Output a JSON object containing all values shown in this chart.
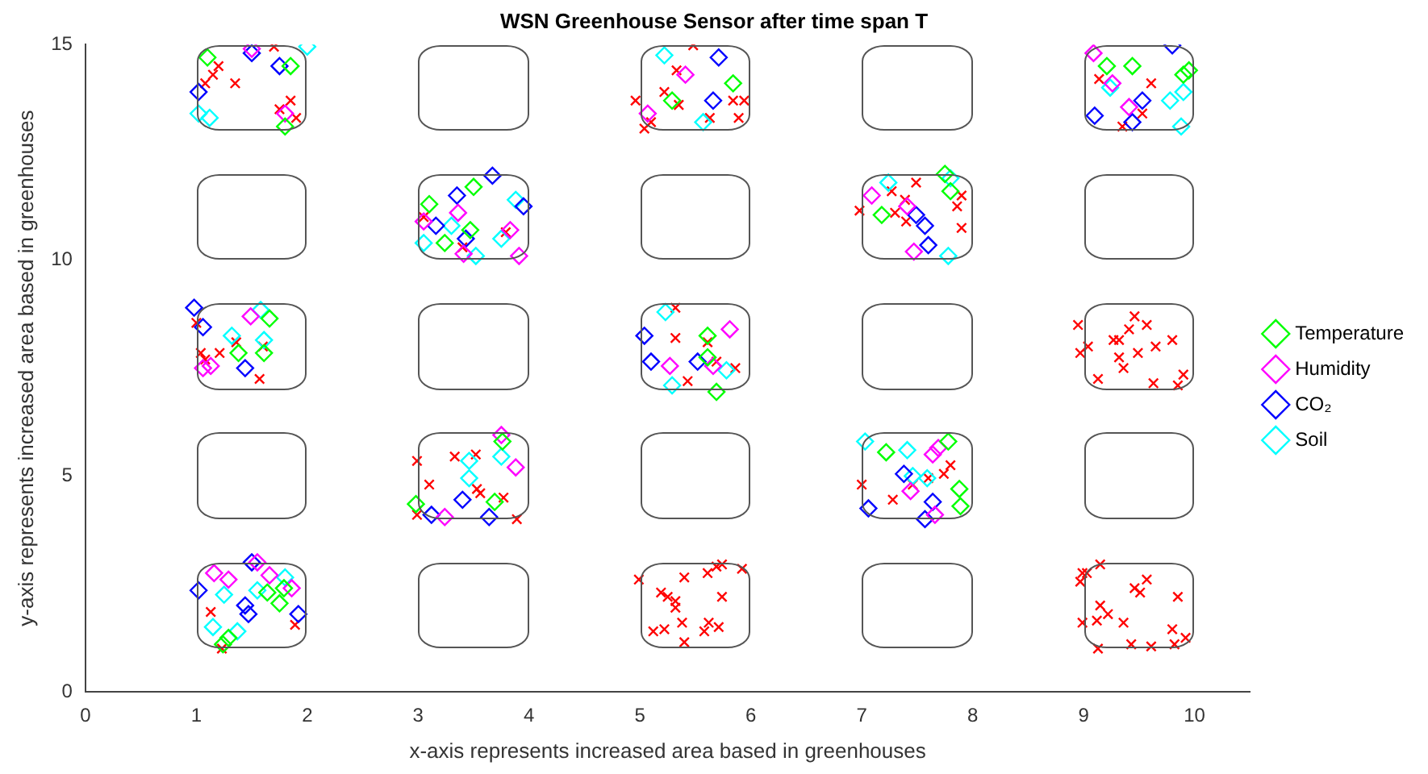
{
  "chart_data": {
    "type": "scatter",
    "title": "WSN Greenhouse Sensor after time span T",
    "xlabel": "x-axis represents increased area based in greenhouses",
    "ylabel": "y-axis represents increased area based in greenhouses",
    "xlim": [
      0,
      10.5
    ],
    "ylim": [
      0,
      15
    ],
    "xticks": [
      0,
      1,
      2,
      3,
      4,
      5,
      6,
      7,
      8,
      9,
      10
    ],
    "yticks": [
      0,
      5,
      10,
      15
    ],
    "grid": false,
    "legend": "right",
    "series": [
      {
        "name": "Temperature",
        "color": "#00ff00",
        "marker": "diamond",
        "x": [
          1.1,
          1.85,
          1.8,
          3.1,
          3.5,
          3.24,
          3.47,
          5.29,
          5.84,
          9.21,
          9.44,
          9.9,
          9.95,
          7.18,
          7.75,
          7.8,
          1.66,
          1.38,
          1.61,
          3.76,
          3.69,
          2.98,
          5.61,
          5.61,
          5.69,
          7.22,
          7.78,
          7.88,
          7.89,
          1.64,
          1.79,
          1.75,
          1.29,
          1.24
        ],
        "values": [
          14.7,
          14.5,
          13.1,
          11.3,
          11.7,
          10.4,
          10.7,
          13.7,
          14.1,
          14.5,
          14.5,
          14.3,
          14.4,
          11.05,
          12.0,
          11.6,
          8.65,
          7.85,
          7.85,
          5.8,
          4.4,
          4.35,
          8.25,
          7.75,
          6.95,
          5.55,
          5.8,
          4.7,
          4.3,
          2.3,
          2.4,
          2.05,
          1.25,
          1.1
        ]
      },
      {
        "name": "Humidity",
        "color": "#ff00ff",
        "marker": "diamond",
        "x": [
          1.5,
          1.8,
          3.36,
          3.05,
          3.83,
          3.91,
          3.41,
          5.41,
          5.07,
          9.09,
          9.26,
          9.41,
          7.09,
          7.41,
          7.47,
          1.49,
          1.06,
          1.13,
          3.75,
          3.88,
          3.24,
          5.81,
          5.27,
          5.66,
          7.64,
          7.69,
          7.44,
          7.66,
          1.55,
          1.16,
          1.29,
          1.66,
          1.86
        ],
        "values": [
          14.9,
          13.4,
          11.1,
          10.9,
          10.7,
          10.1,
          10.15,
          14.3,
          13.4,
          14.8,
          14.1,
          13.55,
          11.5,
          11.25,
          10.2,
          8.7,
          7.5,
          7.55,
          5.95,
          5.2,
          4.05,
          8.4,
          7.55,
          7.55,
          5.5,
          5.65,
          4.65,
          4.1,
          3.0,
          2.75,
          2.6,
          2.7,
          2.4
        ]
      },
      {
        "name": "CO₂",
        "color": "#0000ff",
        "marker": "diamond",
        "x": [
          1.02,
          1.5,
          1.75,
          3.67,
          3.35,
          3.16,
          3.43,
          3.95,
          5.71,
          5.66,
          9.8,
          9.53,
          9.1,
          9.44,
          7.49,
          7.57,
          7.6,
          0.98,
          1.06,
          1.44,
          3.4,
          3.12,
          3.64,
          5.04,
          5.1,
          5.52,
          7.38,
          7.06,
          7.64,
          7.57,
          1.5,
          1.02,
          1.44,
          1.47,
          1.92
        ],
        "values": [
          13.9,
          14.8,
          14.5,
          11.96,
          11.5,
          10.8,
          10.5,
          11.25,
          14.7,
          13.7,
          14.98,
          13.7,
          13.35,
          13.2,
          11.05,
          10.8,
          10.35,
          8.9,
          8.45,
          7.5,
          4.45,
          4.1,
          4.05,
          8.25,
          7.65,
          7.65,
          5.05,
          4.25,
          4.4,
          4.0,
          3.0,
          2.35,
          2.0,
          1.8,
          1.8
        ]
      },
      {
        "name": "Soil",
        "color": "#00ffff",
        "marker": "diamond",
        "x": [
          1.02,
          1.12,
          2.0,
          3.05,
          3.3,
          3.52,
          3.75,
          3.88,
          5.22,
          5.57,
          9.24,
          9.78,
          9.9,
          9.88,
          7.24,
          7.78,
          7.8,
          1.58,
          1.32,
          1.61,
          3.75,
          3.46,
          3.46,
          5.23,
          5.78,
          5.29,
          7.03,
          7.41,
          7.46,
          7.59,
          1.8,
          1.25,
          1.55,
          1.15,
          1.37
        ],
        "values": [
          13.4,
          13.3,
          14.95,
          10.4,
          10.8,
          10.1,
          10.5,
          11.4,
          14.75,
          13.2,
          14.0,
          13.7,
          13.9,
          13.1,
          11.8,
          10.1,
          11.9,
          8.85,
          8.25,
          8.15,
          5.45,
          5.35,
          4.95,
          8.8,
          7.45,
          7.1,
          5.8,
          5.6,
          5.0,
          4.95,
          2.65,
          2.25,
          2.35,
          1.5,
          1.4
        ]
      },
      {
        "color": "#ff0000",
        "marker": "cross",
        "x": [
          1.08,
          1.15,
          1.2,
          1.35,
          1.7,
          1.85,
          1.9,
          1.75,
          3.05,
          3.4,
          3.79,
          5.48,
          5.33,
          5.22,
          4.96,
          5.35,
          5.84,
          5.94,
          5.89,
          5.63,
          5.04,
          5.1,
          9.14,
          9.61,
          9.53,
          9.35,
          7.49,
          7.27,
          7.39,
          7.3,
          6.98,
          7.86,
          7.9,
          7.9,
          7.4,
          1.0,
          1.36,
          1.6,
          1.04,
          1.21,
          1.57,
          1.08,
          2.99,
          3.1,
          3.33,
          3.52,
          3.53,
          3.56,
          3.77,
          2.99,
          3.89,
          5.32,
          5.32,
          5.61,
          5.69,
          5.86,
          5.43,
          8.95,
          9.46,
          9.57,
          9.41,
          9.27,
          9.32,
          9.8,
          9.04,
          8.97,
          9.49,
          9.32,
          9.65,
          9.36,
          9.13,
          9.63,
          9.85,
          9.9,
          7.0,
          7.46,
          7.6,
          7.74,
          7.8,
          7.28,
          1.13,
          1.89,
          1.23,
          4.99,
          5.4,
          5.61,
          5.69,
          5.74,
          5.92,
          5.19,
          5.25,
          5.32,
          5.32,
          5.74,
          5.38,
          5.62,
          5.71,
          5.58,
          5.12,
          5.22,
          5.4,
          8.99,
          9.03,
          9.15,
          8.97,
          9.46,
          9.57,
          9.51,
          9.85,
          9.15,
          9.22,
          8.99,
          9.12,
          9.36,
          9.13,
          9.43,
          9.61,
          9.8,
          9.82,
          9.92
        ],
        "values": [
          14.1,
          14.3,
          14.5,
          14.1,
          14.95,
          13.7,
          13.3,
          13.5,
          11.0,
          10.3,
          10.65,
          14.98,
          14.4,
          13.9,
          13.7,
          13.6,
          13.7,
          13.7,
          13.3,
          13.3,
          13.05,
          13.2,
          14.2,
          14.1,
          13.4,
          13.1,
          11.8,
          11.6,
          11.4,
          11.1,
          11.15,
          11.25,
          11.5,
          10.75,
          10.9,
          8.55,
          8.1,
          8.0,
          7.85,
          7.85,
          7.25,
          7.7,
          5.35,
          4.8,
          5.45,
          5.5,
          4.7,
          4.6,
          4.5,
          4.1,
          4.0,
          8.9,
          8.2,
          8.1,
          7.65,
          7.5,
          7.2,
          8.5,
          8.7,
          8.5,
          8.4,
          8.15,
          8.15,
          8.15,
          8.0,
          7.85,
          7.85,
          7.75,
          8.0,
          7.5,
          7.25,
          7.15,
          7.1,
          7.35,
          4.8,
          4.8,
          4.95,
          5.05,
          5.25,
          4.45,
          1.85,
          1.55,
          1.0,
          2.6,
          2.65,
          2.75,
          2.9,
          2.95,
          2.85,
          2.3,
          2.2,
          2.1,
          1.95,
          2.2,
          1.6,
          1.6,
          1.5,
          1.4,
          1.4,
          1.45,
          1.15,
          2.75,
          2.75,
          2.95,
          2.55,
          2.4,
          2.6,
          2.3,
          2.2,
          2.0,
          1.8,
          1.6,
          1.65,
          1.6,
          1.0,
          1.1,
          1.05,
          1.45,
          1.1,
          1.25
        ]
      }
    ]
  }
}
